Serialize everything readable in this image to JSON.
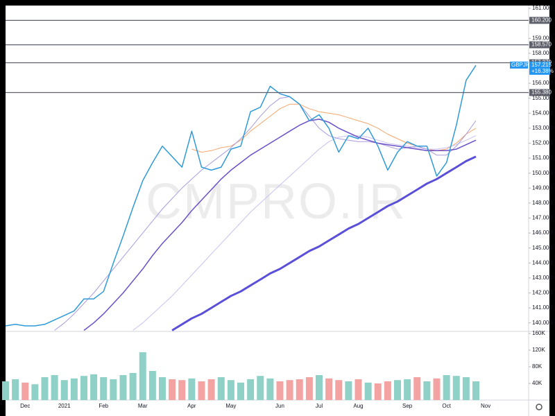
{
  "chart_data": [
    {
      "type": "line",
      "symbol": "GBPJPY",
      "watermark": "CMPRO.IR",
      "last_price": {
        "value": 157.215,
        "label": "157.215"
      },
      "change_label": "+16.38%",
      "categories": [
        null,
        null,
        "Dec",
        null,
        null,
        null,
        "2021",
        null,
        null,
        null,
        "Feb",
        null,
        null,
        null,
        "Mar",
        null,
        null,
        null,
        null,
        "Apr",
        null,
        null,
        null,
        "May",
        null,
        null,
        null,
        null,
        "Jun",
        null,
        null,
        null,
        "Jul",
        null,
        null,
        null,
        "Aug",
        null,
        null,
        null,
        null,
        "Sep",
        null,
        null,
        null,
        "Oct",
        null,
        null,
        null,
        "Nov",
        null
      ],
      "ylim": [
        139.43,
        161.19
      ],
      "yticks": [
        {
          "value": 140,
          "label": "140.000"
        },
        {
          "value": 141,
          "label": "141.000"
        },
        {
          "value": 142,
          "label": "142.000"
        },
        {
          "value": 143,
          "label": "143.000"
        },
        {
          "value": 144,
          "label": "144.000"
        },
        {
          "value": 145,
          "label": "145.000"
        },
        {
          "value": 146,
          "label": "146.000"
        },
        {
          "value": 147,
          "label": "147.000"
        },
        {
          "value": 148,
          "label": "148.000"
        },
        {
          "value": 149,
          "label": "149.000"
        },
        {
          "value": 150,
          "label": "150.000"
        },
        {
          "value": 151,
          "label": "151.000"
        },
        {
          "value": 152,
          "label": "152.000"
        },
        {
          "value": 153,
          "label": "153.000"
        },
        {
          "value": 154,
          "label": "154.000"
        },
        {
          "value": 155,
          "label": "155.000"
        },
        {
          "value": 156,
          "label": "156.000"
        },
        {
          "value": 158,
          "label": "158.000"
        },
        {
          "value": 159,
          "label": "159.000"
        },
        {
          "value": 161,
          "label": "161.000"
        }
      ],
      "levels": [
        {
          "value": 160.2,
          "label": "160.200"
        },
        {
          "value": 158.57,
          "label": "158.570"
        },
        {
          "value": 157.37,
          "label": "157.370"
        },
        {
          "value": 155.38,
          "label": "155.380"
        }
      ],
      "series": [
        {
          "color": "#2e9ad8",
          "values": [
            139.8,
            139.9,
            139.8,
            139.8,
            139.9,
            140.2,
            140.5,
            140.8,
            141.6,
            141.6,
            142.1,
            144.0,
            145.8,
            147.7,
            149.5,
            150.7,
            151.8,
            151.1,
            150.4,
            152.8,
            150.4,
            150.2,
            150.4,
            151.6,
            151.8,
            154.1,
            154.4,
            155.8,
            155.3,
            155.1,
            154.6,
            153.5,
            153.9,
            153.0,
            151.4,
            152.5,
            152.3,
            153.0,
            151.8,
            150.2,
            151.4,
            152.1,
            151.8,
            151.8,
            149.8,
            150.7,
            153.2,
            156.2,
            157.2,
            null,
            null
          ]
        },
        {
          "color": "#5a4fd8",
          "values": [
            null,
            null,
            null,
            null,
            null,
            null,
            null,
            null,
            null,
            null,
            null,
            null,
            null,
            null,
            null,
            null,
            null,
            139.5,
            139.9,
            140.3,
            140.6,
            141.0,
            141.4,
            141.8,
            142.1,
            142.5,
            142.9,
            143.3,
            143.6,
            144.0,
            144.4,
            144.8,
            145.1,
            145.5,
            145.9,
            146.3,
            146.6,
            147.0,
            147.4,
            147.8,
            148.1,
            148.5,
            148.9,
            149.3,
            149.6,
            150.0,
            150.4,
            150.8,
            151.1,
            null,
            null
          ]
        },
        {
          "color": "#6a4fc8",
          "values": [
            null,
            null,
            null,
            null,
            null,
            null,
            null,
            null,
            139.5,
            140.0,
            140.6,
            141.3,
            142.0,
            142.8,
            143.6,
            144.5,
            145.3,
            146.0,
            146.7,
            147.5,
            148.2,
            148.9,
            149.6,
            150.2,
            150.7,
            151.2,
            151.6,
            152.0,
            152.4,
            152.8,
            153.2,
            153.5,
            153.6,
            153.4,
            153.0,
            152.7,
            152.4,
            152.2,
            152.0,
            151.9,
            151.8,
            151.7,
            151.6,
            151.5,
            151.5,
            151.5,
            151.6,
            151.9,
            152.2,
            null,
            null
          ]
        },
        {
          "color": "#a89be0",
          "values": [
            null,
            null,
            null,
            null,
            null,
            139.5,
            140.0,
            140.6,
            141.3,
            142.0,
            142.8,
            143.6,
            144.4,
            145.2,
            146.0,
            146.8,
            147.6,
            148.3,
            149.0,
            149.6,
            150.2,
            150.7,
            151.2,
            151.7,
            152.3,
            153.0,
            153.8,
            154.5,
            155.0,
            155.1,
            154.6,
            153.8,
            153.0,
            152.5,
            152.3,
            152.2,
            152.1,
            152.1,
            152.0,
            151.8,
            151.6,
            151.7,
            151.8,
            151.6,
            151.2,
            151.2,
            151.8,
            152.6,
            153.5,
            null,
            null
          ]
        },
        {
          "color": "#c9c0f0",
          "values": [
            null,
            null,
            null,
            null,
            null,
            null,
            null,
            null,
            null,
            null,
            null,
            null,
            null,
            139.5,
            140.0,
            140.6,
            141.2,
            141.8,
            142.5,
            143.2,
            143.9,
            144.6,
            145.3,
            146.0,
            146.7,
            147.4,
            148.0,
            148.6,
            149.2,
            149.8,
            150.4,
            151.0,
            151.6,
            152.1,
            152.4,
            152.5,
            152.5,
            152.4,
            152.2,
            152.0,
            151.9,
            151.8,
            151.7,
            151.6,
            151.6,
            151.7,
            151.9,
            152.2,
            152.5,
            null,
            null
          ]
        },
        {
          "color": "#f5a66b",
          "values": [
            null,
            null,
            null,
            null,
            null,
            null,
            null,
            null,
            null,
            null,
            null,
            null,
            null,
            null,
            null,
            null,
            null,
            null,
            null,
            151.6,
            151.4,
            151.5,
            151.7,
            151.8,
            152.2,
            152.8,
            153.3,
            153.8,
            154.3,
            154.6,
            154.6,
            154.3,
            154.1,
            154.0,
            153.9,
            153.7,
            153.5,
            153.3,
            153.0,
            152.6,
            152.3,
            152.0,
            151.8,
            151.6,
            151.5,
            151.6,
            152.0,
            152.6,
            153.0,
            null,
            null
          ]
        }
      ]
    },
    {
      "type": "bar",
      "colors": [
        "#8fd1c6",
        "#f4a3a3"
      ],
      "ylim": [
        0,
        165000
      ],
      "yticks": [
        {
          "value": 40000,
          "label": "40K"
        },
        {
          "value": 80000,
          "label": "80K"
        },
        {
          "value": 120000,
          "label": "120K"
        },
        {
          "value": 160000,
          "label": "160K"
        }
      ],
      "values": [
        45000,
        50000,
        42000,
        38000,
        55000,
        60000,
        48000,
        52000,
        58000,
        62000,
        55000,
        50000,
        60000,
        65000,
        115000,
        70000,
        55000,
        50000,
        48000,
        52000,
        45000,
        50000,
        55000,
        48000,
        42000,
        50000,
        58000,
        52000,
        45000,
        48000,
        50000,
        55000,
        60000,
        52000,
        48000,
        45000,
        50000,
        42000,
        40000,
        45000,
        48000,
        50000,
        55000,
        45000,
        52000,
        60000,
        58000,
        55000,
        45000,
        null,
        null
      ]
    }
  ]
}
